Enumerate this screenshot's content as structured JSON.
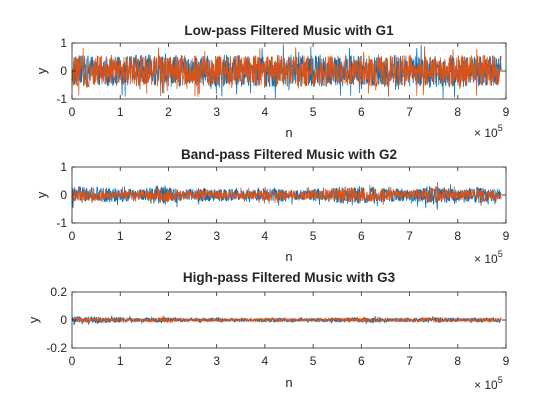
{
  "figure": {
    "background": "#ffffff",
    "axes_color": "#262626",
    "plot_bg": "#ffffff"
  },
  "chart_data": [
    {
      "type": "line",
      "title": "Low-pass Filtered Music with G1",
      "xlabel": "n",
      "ylabel": "y",
      "xlim": [
        0,
        900000
      ],
      "ylim": [
        -1,
        1
      ],
      "x_ticks": [
        "0",
        "1",
        "2",
        "3",
        "4",
        "5",
        "6",
        "7",
        "8",
        "9"
      ],
      "y_ticks": [
        "-1",
        "0",
        "1"
      ],
      "x_exponent_label": "× 10",
      "x_exponent_power": "5",
      "grid": false,
      "signal_length": 890000,
      "series": [
        {
          "color": "#0072BD",
          "envelope": [
            0.55,
            0.58,
            0.52,
            0.6,
            0.55,
            0.57,
            0.56,
            0.58,
            0.55,
            0.6,
            0.57,
            0.55,
            0.58,
            0.56,
            0.6,
            0.55,
            0.57,
            0.58,
            0.56,
            0.55
          ]
        },
        {
          "color": "#D95319",
          "envelope": [
            0.55,
            0.57,
            0.52,
            0.58,
            0.55,
            0.56,
            0.55,
            0.57,
            0.55,
            0.58,
            0.56,
            0.55,
            0.57,
            0.55,
            0.58,
            0.55,
            0.56,
            0.57,
            0.55,
            0.55
          ]
        }
      ]
    },
    {
      "type": "line",
      "title": "Band-pass Filtered Music with G2",
      "xlabel": "n",
      "ylabel": "y",
      "xlim": [
        0,
        900000
      ],
      "ylim": [
        -1,
        1
      ],
      "x_ticks": [
        "0",
        "1",
        "2",
        "3",
        "4",
        "5",
        "6",
        "7",
        "8",
        "9"
      ],
      "y_ticks": [
        "-1",
        "0",
        "1"
      ],
      "x_exponent_label": "× 10",
      "x_exponent_power": "5",
      "grid": false,
      "signal_length": 890000,
      "series": [
        {
          "color": "#0072BD",
          "envelope": [
            0.3,
            0.3,
            0.25,
            0.2,
            0.38,
            0.2,
            0.25,
            0.2,
            0.2,
            0.25,
            0.2,
            0.22,
            0.32,
            0.32,
            0.25,
            0.22,
            0.35,
            0.2,
            0.3,
            0.22
          ]
        },
        {
          "color": "#D95319",
          "envelope": [
            0.22,
            0.22,
            0.18,
            0.17,
            0.3,
            0.15,
            0.2,
            0.17,
            0.16,
            0.2,
            0.17,
            0.18,
            0.27,
            0.28,
            0.2,
            0.18,
            0.3,
            0.17,
            0.25,
            0.18
          ]
        }
      ]
    },
    {
      "type": "line",
      "title": "High-pass Filtered Music with G3",
      "xlabel": "n",
      "ylabel": "y",
      "xlim": [
        0,
        900000
      ],
      "ylim": [
        -0.2,
        0.2
      ],
      "x_ticks": [
        "0",
        "1",
        "2",
        "3",
        "4",
        "5",
        "6",
        "7",
        "8",
        "9"
      ],
      "y_ticks": [
        "-0.2",
        "0",
        "0.2"
      ],
      "x_exponent_label": "× 10",
      "x_exponent_power": "5",
      "grid": false,
      "signal_length": 890000,
      "series": [
        {
          "color": "#0072BD",
          "envelope": [
            0.13,
            0.12,
            0.1,
            0.07,
            0.11,
            0.06,
            0.08,
            0.06,
            0.06,
            0.08,
            0.06,
            0.07,
            0.09,
            0.09,
            0.08,
            0.07,
            0.1,
            0.06,
            0.08,
            0.07
          ]
        },
        {
          "color": "#D95319",
          "envelope": [
            0.08,
            0.08,
            0.07,
            0.05,
            0.1,
            0.05,
            0.06,
            0.05,
            0.05,
            0.06,
            0.05,
            0.06,
            0.08,
            0.08,
            0.06,
            0.06,
            0.09,
            0.05,
            0.07,
            0.06
          ]
        }
      ]
    }
  ]
}
